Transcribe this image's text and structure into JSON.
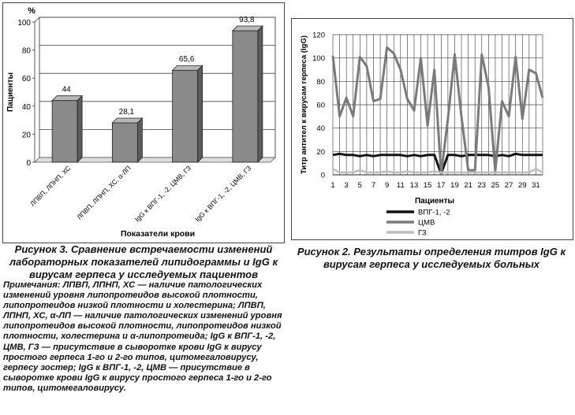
{
  "left_chart": {
    "caption_figure": "Рисунок 3.",
    "caption_text": "Сравнение встречаемости изменений лабораторных показателей липидограммы и IgG к вирусам герпеса у исследуемых пациентов",
    "notes": "Примечания: ЛПВП, ЛПНП, ХС — наличие патологических изменений уровня липопротеидов высокой плотности, липопротеидов низкой плотности и холестерина; ЛПВП, ЛПНП, ХС, α-ЛП — наличие патологических изменений уровня липопротеидов высокой плотности, липопротеидов низкой плотности, холестерина и α-липопротеида; IgG к ВПГ-1, -2, ЦМВ, ГЗ — присутствие в сыворотке крови IgG к вирусу простого герпеса 1-го и 2-го типов, цитомегаловирусу, герпесу зостер; IgG к ВПГ-1, -2, ЦМВ — присутствие в сыворотке крови IgG к вирусу простого герпеса 1-го и 2-го типов, цитомегаловирусу."
  },
  "right_chart": {
    "caption_figure": "Рисунок 2.",
    "caption_text": "Результаты определения титров IgG к вирусам герпеса у исследуемых больных"
  },
  "chart_data": [
    {
      "type": "bar",
      "title": "",
      "unit_label": "%",
      "xlabel": "Показатели крови",
      "ylabel": "Пациенты",
      "ylim": [
        0,
        100
      ],
      "yticks": [
        "0",
        "20",
        "40",
        "60",
        "80",
        "100"
      ],
      "categories": [
        "ЛПВП, ЛПНП, ХС",
        "ЛПВП, ЛПНП, ХС, α-ЛП",
        "IgG к ВПГ-1, -2, ЦМВ, ГЗ",
        "IgG к ВПГ-1, -2, ЦМВ, ГЗ"
      ],
      "values": [
        44,
        28.1,
        65.6,
        93.8
      ],
      "value_labels": [
        "44",
        "28,1",
        "65,6",
        "93,8"
      ],
      "grid": true,
      "bar_color": "#8a8a8a"
    },
    {
      "type": "line",
      "title": "",
      "xlabel": "Пациенты",
      "ylabel": "Титр антител к вирусам герпеса (IgG)",
      "ylim": [
        0,
        120
      ],
      "yticks": [
        "0",
        "20",
        "40",
        "60",
        "80",
        "100",
        "120"
      ],
      "xticks": [
        "1",
        "3",
        "5",
        "7",
        "9",
        "11",
        "13",
        "15",
        "17",
        "19",
        "21",
        "23",
        "25",
        "27",
        "29",
        "31"
      ],
      "x": [
        1,
        2,
        3,
        4,
        5,
        6,
        7,
        8,
        9,
        10,
        11,
        12,
        13,
        14,
        15,
        16,
        17,
        18,
        19,
        20,
        21,
        22,
        23,
        24,
        25,
        26,
        27,
        28,
        29,
        30,
        31,
        32
      ],
      "grid": true,
      "legend_position": "bottom",
      "series": [
        {
          "name": "ВПГ-1, -2",
          "color": "#111111",
          "values": [
            17,
            18,
            17,
            17,
            16,
            17,
            16,
            17,
            17,
            17,
            17,
            16,
            17,
            16,
            17,
            17,
            1,
            17,
            17,
            16,
            17,
            17,
            17,
            17,
            16,
            17,
            16,
            18,
            17,
            17,
            17,
            17
          ]
        },
        {
          "name": "ЦМВ",
          "color": "#7a7a7a",
          "values": [
            102,
            50,
            66,
            50,
            101,
            93,
            63,
            65,
            109,
            104,
            90,
            65,
            55,
            100,
            42,
            90,
            1,
            48,
            103,
            50,
            4,
            4,
            103,
            75,
            3,
            63,
            50,
            101,
            48,
            90,
            87,
            66
          ]
        },
        {
          "name": "ГЗ",
          "color": "#bdbdbd",
          "values": [
            5,
            2,
            2,
            2,
            4,
            2,
            2,
            2,
            3,
            2,
            2,
            3,
            2,
            2,
            2,
            3,
            2,
            2,
            2,
            2,
            2,
            2,
            2,
            2,
            2,
            2,
            2,
            2,
            2,
            2,
            5,
            2
          ]
        }
      ]
    }
  ]
}
